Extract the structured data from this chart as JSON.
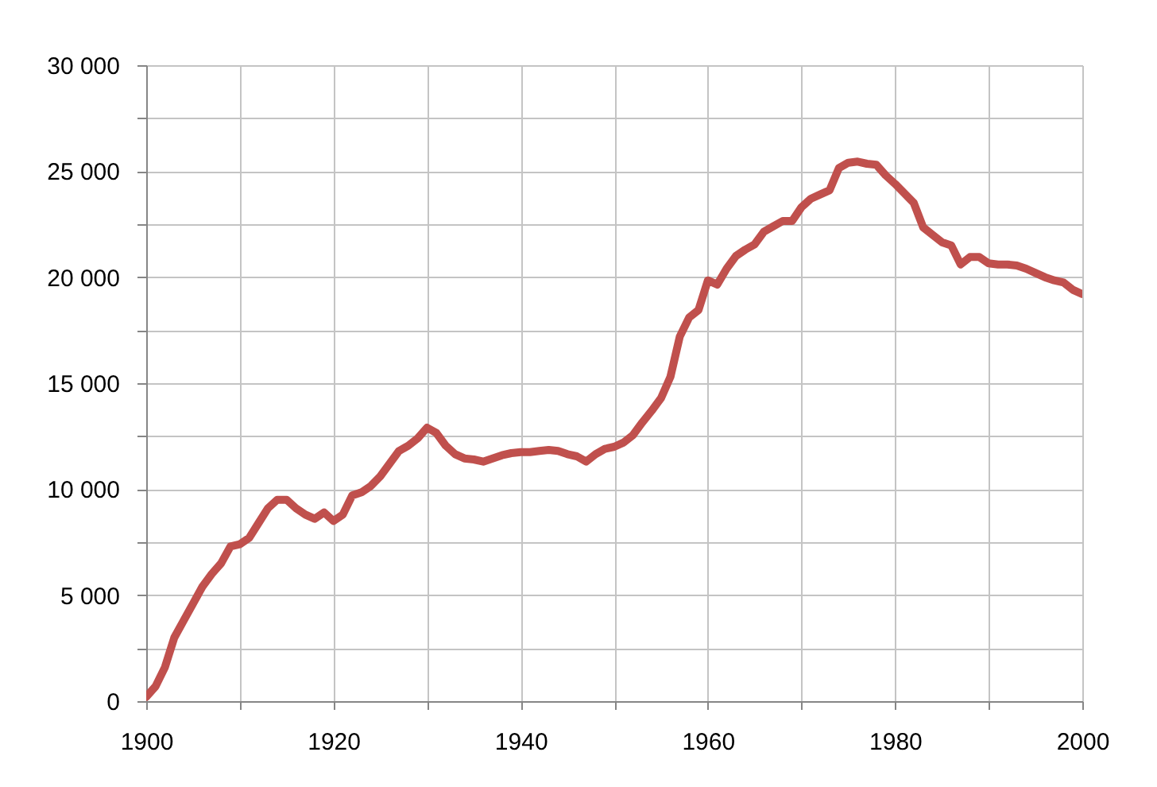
{
  "chart_data": {
    "type": "line",
    "color": "#c0504d",
    "x": [
      1900,
      1901,
      1902,
      1903,
      1904,
      1905,
      1906,
      1907,
      1908,
      1909,
      1910,
      1911,
      1912,
      1913,
      1914,
      1915,
      1916,
      1917,
      1918,
      1919,
      1920,
      1921,
      1922,
      1923,
      1924,
      1925,
      1926,
      1927,
      1928,
      1929,
      1930,
      1931,
      1932,
      1933,
      1934,
      1935,
      1936,
      1937,
      1938,
      1939,
      1940,
      1941,
      1942,
      1943,
      1944,
      1945,
      1946,
      1947,
      1948,
      1949,
      1950,
      1951,
      1952,
      1953,
      1954,
      1955,
      1956,
      1957,
      1958,
      1959,
      1960,
      1961,
      1962,
      1963,
      1964,
      1965,
      1966,
      1967,
      1968,
      1969,
      1970,
      1971,
      1972,
      1973,
      1974,
      1975,
      1976,
      1977,
      1978,
      1979,
      1980,
      1981,
      1982,
      1983,
      1984,
      1985,
      1986,
      1987,
      1988,
      1989,
      1990,
      1991,
      1992,
      1993,
      1994,
      1995,
      1996,
      1997,
      1998,
      1999,
      2000
    ],
    "values": [
      200,
      700,
      1600,
      3000,
      3800,
      4600,
      5400,
      6000,
      6500,
      7300,
      7400,
      7700,
      8400,
      9100,
      9500,
      9500,
      9100,
      8800,
      8600,
      8900,
      8500,
      8800,
      9700,
      9850,
      10150,
      10600,
      11200,
      11800,
      12050,
      12400,
      12900,
      12650,
      12050,
      11650,
      11450,
      11400,
      11300,
      11450,
      11600,
      11700,
      11750,
      11750,
      11800,
      11850,
      11800,
      11650,
      11550,
      11300,
      11650,
      11900,
      12000,
      12200,
      12550,
      13150,
      13700,
      14300,
      15300,
      17200,
      18100,
      18450,
      19850,
      19650,
      20400,
      21000,
      21300,
      21550,
      22150,
      22400,
      22650,
      22650,
      23300,
      23700,
      23900,
      24100,
      25150,
      25400,
      25450,
      25350,
      25300,
      24800,
      24400,
      23950,
      23500,
      22350,
      22000,
      21650,
      21500,
      20600,
      20950,
      20950,
      20650,
      20600,
      20600,
      20550,
      20400,
      20200,
      20000,
      19850,
      19750,
      19400,
      19200
    ],
    "xlim": [
      1900,
      2000
    ],
    "xticks": [
      1900,
      {
        "value": 1910,
        "label": null
      },
      1920,
      {
        "value": 1930,
        "label": null
      },
      1940,
      {
        "value": 1950,
        "label": null
      },
      1960,
      {
        "value": 1970,
        "label": null
      },
      1980,
      {
        "value": 1990,
        "label": null
      },
      2000
    ],
    "ylim": [
      0,
      30000
    ],
    "yticks": [
      0,
      {
        "value": 2500,
        "label": null
      },
      {
        "value": 5000,
        "label": "5 000"
      },
      {
        "value": 7500,
        "label": null
      },
      {
        "value": 10000,
        "label": "10 000"
      },
      {
        "value": 12500,
        "label": null
      },
      {
        "value": 15000,
        "label": "15 000"
      },
      {
        "value": 17500,
        "label": null
      },
      {
        "value": 20000,
        "label": "20 000"
      },
      {
        "value": 22500,
        "label": null
      },
      {
        "value": 25000,
        "label": "25 000"
      },
      {
        "value": 27500,
        "label": null
      },
      {
        "value": 30000,
        "label": "30 000"
      }
    ],
    "grid": true
  }
}
